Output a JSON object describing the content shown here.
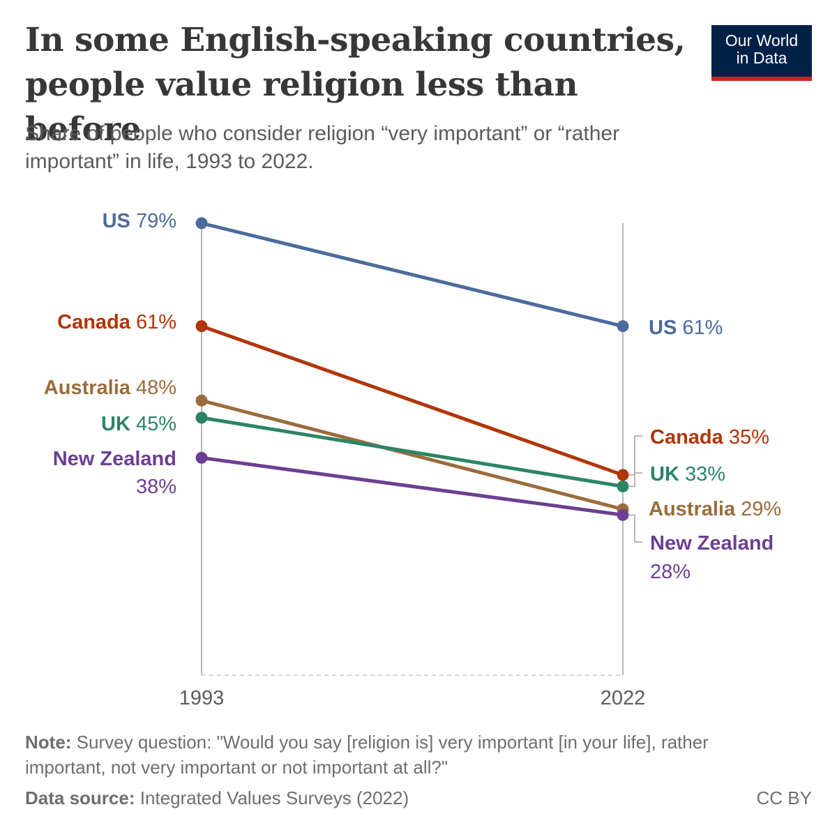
{
  "header": {
    "title": "In some English-speaking countries, people value religion less than before",
    "subtitle": "Share of people who consider religion “very important” or “rather important” in life, 1993 to 2022.",
    "logo_line1": "Our World",
    "logo_line2": "in Data"
  },
  "footer": {
    "note_label": "Note:",
    "note_text": "Survey question: \"Would you say [religion is] very important [in your life], rather important, not very important or not important at all?\"",
    "source_label": "Data source:",
    "source_text": "Integrated Values Surveys (2022)",
    "license": "CC BY"
  },
  "chart_data": {
    "type": "line",
    "subtype": "slope",
    "x": [
      "1993",
      "2022"
    ],
    "ylim": [
      0,
      79
    ],
    "unit": "%",
    "series": [
      {
        "name": "US",
        "values": [
          79,
          61
        ],
        "labels": [
          "79%",
          "61%"
        ],
        "color": "#4c6a9c"
      },
      {
        "name": "Canada",
        "values": [
          61,
          35
        ],
        "labels": [
          "61%",
          "35%"
        ],
        "color": "#b13507"
      },
      {
        "name": "Australia",
        "values": [
          48,
          29
        ],
        "labels": [
          "48%",
          "29%"
        ],
        "color": "#9a6c3c"
      },
      {
        "name": "UK",
        "values": [
          45,
          33
        ],
        "labels": [
          "45%",
          "33%"
        ],
        "color": "#2c8465"
      },
      {
        "name": "New Zealand",
        "values": [
          38,
          28
        ],
        "labels": [
          "38%",
          "28%"
        ],
        "color": "#6d3e91"
      }
    ]
  }
}
